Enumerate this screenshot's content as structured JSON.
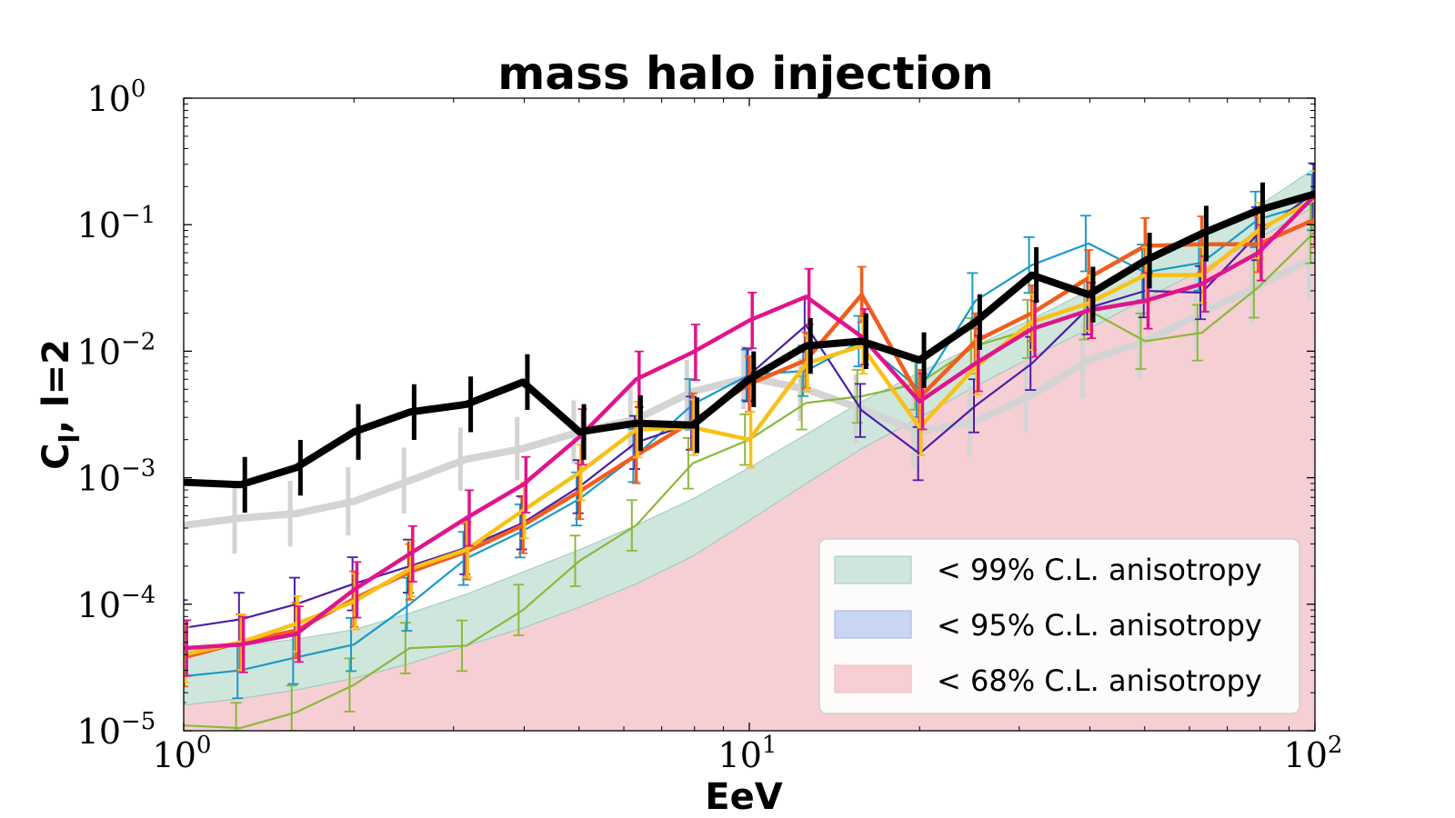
{
  "chart_data": {
    "type": "line",
    "title": "mass halo injection",
    "xlabel": "EeV",
    "ylabel": "C_l, l=2",
    "ylabel_main": "C",
    "ylabel_sub": "l",
    "ylabel_rest": ", l=2",
    "xscale": "log",
    "yscale": "log",
    "xlim": [
      1,
      100
    ],
    "ylim": [
      1e-05,
      1
    ],
    "xticks": [
      {
        "value": 1,
        "base": "10",
        "exp": "0"
      },
      {
        "value": 10,
        "base": "10",
        "exp": "1"
      },
      {
        "value": 100,
        "base": "10",
        "exp": "2"
      }
    ],
    "yticks": [
      {
        "value": 1e-05,
        "base": "10",
        "exp": "−5"
      },
      {
        "value": 0.0001,
        "base": "10",
        "exp": "−4"
      },
      {
        "value": 0.001,
        "base": "10",
        "exp": "−3"
      },
      {
        "value": 0.01,
        "base": "10",
        "exp": "−2"
      },
      {
        "value": 0.1,
        "base": "10",
        "exp": "−1"
      },
      {
        "value": 1,
        "base": "10",
        "exp": "0"
      }
    ],
    "legend": {
      "position": "lower-right",
      "entries": [
        {
          "label": "< 99% C.L. anisotropy",
          "color": "#cfe6dc"
        },
        {
          "label": "< 95% C.L. anisotropy",
          "color": "#c9d5f3"
        },
        {
          "label": "< 68% C.L. anisotropy",
          "color": "#f5cfd4"
        }
      ]
    },
    "bands": [
      {
        "name": "< 99% C.L. anisotropy",
        "color": "#cfe6dc",
        "edge": "#9ccbb8",
        "x": [
          1,
          1.26,
          1.58,
          2,
          2.51,
          3.16,
          3.98,
          5.01,
          6.31,
          7.94,
          10,
          12.6,
          15.8,
          20,
          25.1,
          31.6,
          39.8,
          50.1,
          63.1,
          79.4,
          100
        ],
        "lower": [
          1.6e-05,
          1.8e-05,
          2.1e-05,
          2.6e-05,
          3.4e-05,
          4.7e-05,
          6.5e-05,
          9.5e-05,
          0.000145,
          0.00024,
          0.00046,
          0.0009,
          0.0017,
          0.003,
          0.0053,
          0.009,
          0.015,
          0.026,
          0.044,
          0.078,
          0.14
        ],
        "upper": [
          4.5e-05,
          4.7e-05,
          5.3e-05,
          6.3e-05,
          8.5e-05,
          0.00012,
          0.00018,
          0.00027,
          0.00042,
          0.00068,
          0.0012,
          0.0022,
          0.004,
          0.0068,
          0.011,
          0.018,
          0.03,
          0.05,
          0.082,
          0.14,
          0.28
        ]
      },
      {
        "name": "< 95% C.L. anisotropy",
        "color": "#c9d5f3",
        "edge": "#9fb3e6",
        "x": [
          1,
          1.26,
          1.58,
          2,
          2.51,
          3.16,
          3.98,
          5.01,
          6.31,
          7.94,
          10,
          12.6,
          15.8,
          20,
          25.1,
          31.6,
          39.8,
          50.1,
          63.1,
          79.4,
          100
        ],
        "lower": [
          1.6e-05,
          1.8e-05,
          2.1e-05,
          2.6e-05,
          3.4e-05,
          4.7e-05,
          6.5e-05,
          9.5e-05,
          0.000145,
          0.00024,
          0.00046,
          0.0009,
          0.0017,
          0.003,
          0.0053,
          0.009,
          0.015,
          0.026,
          0.044,
          0.078,
          0.14
        ],
        "upper": [
          2.6e-05,
          2.8e-05,
          3.2e-05,
          3.9e-05,
          5.2e-05,
          7.2e-05,
          0.000105,
          0.000155,
          0.00024,
          0.00039,
          0.00069,
          0.0013,
          0.0024,
          0.0041,
          0.007,
          0.0115,
          0.019,
          0.032,
          0.054,
          0.094,
          0.19
        ]
      },
      {
        "name": "< 68% C.L. anisotropy",
        "color": "#f5cfd4",
        "edge": "#f0b8c0",
        "x": [
          1,
          1.26,
          1.58,
          2,
          2.51,
          3.16,
          3.98,
          5.01,
          6.31,
          7.94,
          10,
          12.6,
          15.8,
          20,
          25.1,
          31.6,
          39.8,
          50.1,
          63.1,
          79.4,
          100
        ],
        "lower": [
          1e-05,
          1e-05,
          1e-05,
          1e-05,
          1e-05,
          1e-05,
          1e-05,
          1e-05,
          1e-05,
          1e-05,
          1e-05,
          1e-05,
          1e-05,
          1e-05,
          1e-05,
          1e-05,
          1e-05,
          1e-05,
          1e-05,
          1e-05,
          1e-05
        ],
        "upper": [
          1.6e-05,
          1.8e-05,
          2.1e-05,
          2.6e-05,
          3.4e-05,
          4.7e-05,
          6.5e-05,
          9.5e-05,
          0.000145,
          0.00024,
          0.00046,
          0.0009,
          0.0017,
          0.003,
          0.0053,
          0.009,
          0.015,
          0.026,
          0.044,
          0.078,
          0.14
        ]
      }
    ],
    "series": [
      {
        "name": "gray-reference",
        "color": "#d4d4d4",
        "weight": "heavy",
        "x": [
          1,
          1.26,
          1.58,
          2,
          2.51,
          3.16,
          3.98,
          5.01,
          6.31,
          7.94,
          10,
          12.6,
          15.8,
          20,
          25.1,
          31.6,
          39.8,
          50.1,
          63.1,
          79.4,
          100
        ],
        "y": [
          0.00042,
          0.00048,
          0.00052,
          0.00065,
          0.00095,
          0.0014,
          0.0017,
          0.0023,
          0.0029,
          0.0048,
          0.0062,
          0.005,
          0.0035,
          0.0023,
          0.0028,
          0.0045,
          0.0085,
          0.012,
          0.02,
          0.033,
          0.055
        ],
        "err": [
          0.28,
          0.28,
          0.26,
          0.27,
          0.26,
          0.25,
          0.25,
          0.25,
          0.25,
          0.25,
          0.25,
          0.25,
          0.27,
          0.28,
          0.28,
          0.3,
          0.3,
          0.3,
          0.3,
          0.3,
          0.33
        ]
      },
      {
        "name": "green",
        "color": "#8cb83c",
        "weight": "thin",
        "x": [
          1,
          1.26,
          1.58,
          2,
          2.51,
          3.16,
          3.98,
          5.01,
          6.31,
          7.94,
          10,
          12.6,
          15.8,
          20,
          25.1,
          31.6,
          39.8,
          50.1,
          63.1,
          79.4,
          100
        ],
        "y": [
          1.1e-05,
          1.05e-05,
          1.4e-05,
          2.3e-05,
          4.5e-05,
          4.7e-05,
          9e-05,
          0.00022,
          0.00042,
          0.0013,
          0.002,
          0.0039,
          0.0044,
          0.0056,
          0.011,
          0.015,
          0.021,
          0.012,
          0.014,
          0.032,
          0.088
        ],
        "err": [
          0.19,
          0.2,
          0.21,
          0.21,
          0.2,
          0.2,
          0.2,
          0.2,
          0.2,
          0.2,
          0.2,
          0.21,
          0.21,
          0.21,
          0.22,
          0.23,
          0.23,
          0.22,
          0.22,
          0.24,
          0.25
        ]
      },
      {
        "name": "teal",
        "color": "#1a9ac9",
        "weight": "thin",
        "x": [
          1,
          1.26,
          1.58,
          2,
          2.51,
          3.16,
          3.98,
          5.01,
          6.31,
          7.94,
          10,
          12.6,
          15.8,
          20,
          25.1,
          31.6,
          39.8,
          50.1,
          63.1,
          79.4,
          100
        ],
        "y": [
          2.7e-05,
          3e-05,
          3.8e-05,
          4.8e-05,
          0.0001,
          0.00023,
          0.00038,
          0.00068,
          0.0015,
          0.0038,
          0.0065,
          0.007,
          0.012,
          0.005,
          0.025,
          0.048,
          0.071,
          0.042,
          0.05,
          0.11,
          0.15
        ],
        "err": [
          0.21,
          0.22,
          0.21,
          0.21,
          0.21,
          0.21,
          0.21,
          0.21,
          0.21,
          0.2,
          0.2,
          0.2,
          0.2,
          0.22,
          0.22,
          0.22,
          0.22,
          0.22,
          0.22,
          0.22,
          0.22
        ]
      },
      {
        "name": "purple",
        "color": "#4b1fa6",
        "weight": "thin",
        "x": [
          1,
          1.26,
          1.58,
          2,
          2.51,
          3.16,
          3.98,
          5.01,
          6.31,
          7.94,
          10,
          12.6,
          15.8,
          20,
          25.1,
          31.6,
          39.8,
          50.1,
          63.1,
          79.4,
          100
        ],
        "y": [
          6.5e-05,
          7.6e-05,
          0.0001,
          0.000145,
          0.0002,
          0.00028,
          0.00044,
          0.00085,
          0.0019,
          0.0027,
          0.0065,
          0.016,
          0.0034,
          0.00155,
          0.0037,
          0.008,
          0.022,
          0.03,
          0.029,
          0.085,
          0.18
        ],
        "err": [
          0.22,
          0.21,
          0.21,
          0.21,
          0.21,
          0.21,
          0.21,
          0.21,
          0.21,
          0.21,
          0.21,
          0.21,
          0.21,
          0.21,
          0.21,
          0.21,
          0.21,
          0.21,
          0.21,
          0.21,
          0.23
        ]
      },
      {
        "name": "orange",
        "color": "#f25c1f",
        "weight": "medium",
        "x": [
          1,
          1.26,
          1.58,
          2,
          2.51,
          3.16,
          3.98,
          5.01,
          6.31,
          7.94,
          10,
          12.6,
          15.8,
          20,
          25.1,
          31.6,
          39.8,
          50.1,
          63.1,
          79.4,
          100
        ],
        "y": [
          3.8e-05,
          5e-05,
          6.2e-05,
          0.00011,
          0.00018,
          0.00026,
          0.00042,
          0.00078,
          0.0015,
          0.0028,
          0.0055,
          0.0085,
          0.028,
          0.0043,
          0.012,
          0.02,
          0.038,
          0.068,
          0.07,
          0.07,
          0.11
        ],
        "err": [
          0.23,
          0.22,
          0.22,
          0.22,
          0.22,
          0.22,
          0.22,
          0.22,
          0.22,
          0.22,
          0.22,
          0.22,
          0.22,
          0.22,
          0.22,
          0.22,
          0.22,
          0.22,
          0.22,
          0.22,
          0.22
        ]
      },
      {
        "name": "yellow",
        "color": "#f7c11a",
        "weight": "medium",
        "x": [
          1,
          1.26,
          1.58,
          2,
          2.51,
          3.16,
          3.98,
          5.01,
          6.31,
          7.94,
          10,
          12.6,
          15.8,
          20,
          25.1,
          31.6,
          39.8,
          50.1,
          63.1,
          79.4,
          100
        ],
        "y": [
          4e-05,
          5e-05,
          7e-05,
          0.000105,
          0.00019,
          0.00027,
          0.00055,
          0.0011,
          0.0024,
          0.0025,
          0.002,
          0.008,
          0.011,
          0.0025,
          0.0075,
          0.017,
          0.024,
          0.04,
          0.04,
          0.09,
          0.16
        ],
        "err": [
          0.22,
          0.22,
          0.22,
          0.22,
          0.22,
          0.22,
          0.22,
          0.22,
          0.22,
          0.22,
          0.22,
          0.22,
          0.22,
          0.22,
          0.22,
          0.22,
          0.22,
          0.22,
          0.22,
          0.22,
          0.22
        ]
      },
      {
        "name": "magenta",
        "color": "#e0148c",
        "weight": "medium",
        "x": [
          1,
          1.26,
          1.58,
          2,
          2.51,
          3.16,
          3.98,
          5.01,
          6.31,
          7.94,
          10,
          12.6,
          15.8,
          20,
          25.1,
          31.6,
          39.8,
          50.1,
          63.1,
          79.4,
          100
        ],
        "y": [
          4.5e-05,
          4.8e-05,
          5.8e-05,
          0.00013,
          0.00025,
          0.00048,
          0.00088,
          0.0021,
          0.006,
          0.0098,
          0.0175,
          0.027,
          0.013,
          0.004,
          0.008,
          0.015,
          0.021,
          0.025,
          0.034,
          0.06,
          0.17
        ],
        "err": [
          0.22,
          0.22,
          0.22,
          0.22,
          0.22,
          0.22,
          0.22,
          0.22,
          0.22,
          0.22,
          0.22,
          0.22,
          0.22,
          0.22,
          0.22,
          0.22,
          0.22,
          0.22,
          0.22,
          0.22,
          0.24
        ]
      },
      {
        "name": "black-data",
        "color": "#000000",
        "weight": "heavy",
        "x": [
          1,
          1.26,
          1.58,
          2,
          2.51,
          3.16,
          3.98,
          5.01,
          6.31,
          7.94,
          10,
          12.6,
          15.8,
          20,
          25.1,
          31.6,
          39.8,
          50.1,
          63.1,
          79.4,
          100
        ],
        "y": [
          0.00092,
          0.00088,
          0.0012,
          0.0023,
          0.0033,
          0.0038,
          0.0057,
          0.0023,
          0.0027,
          0.0026,
          0.006,
          0.011,
          0.012,
          0.0085,
          0.017,
          0.04,
          0.028,
          0.052,
          0.085,
          0.13,
          0.175
        ],
        "err": [
          0,
          0.22,
          0.22,
          0.22,
          0.22,
          0.22,
          0.22,
          0.22,
          0.22,
          0.22,
          0.22,
          0.22,
          0.22,
          0.22,
          0.22,
          0.22,
          0.22,
          0.22,
          0.22,
          0.22,
          0.22
        ]
      }
    ]
  }
}
